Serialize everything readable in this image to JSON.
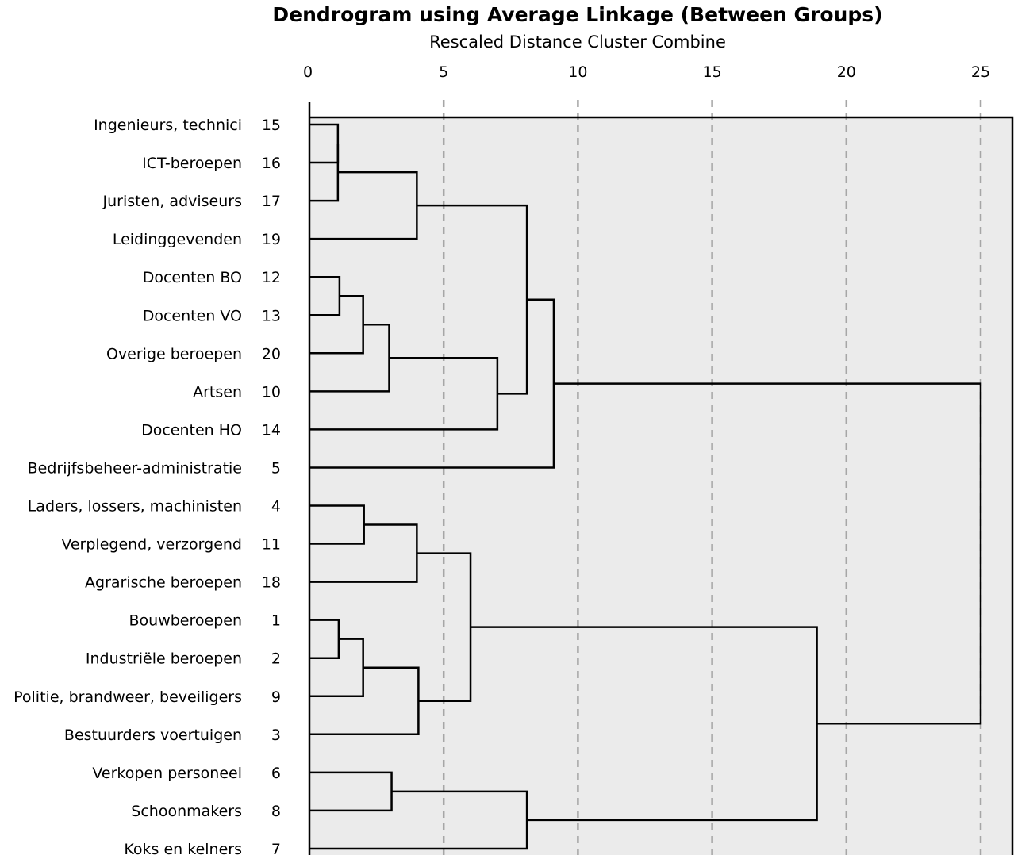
{
  "chart_data": {
    "type": "dendrogram",
    "title": "Dendrogram using Average Linkage (Between Groups)",
    "subtitle": "Rescaled Distance Cluster Combine",
    "x_ticks": [
      "0",
      "5",
      "10",
      "15",
      "20",
      "25"
    ],
    "xlim": [
      0,
      25
    ],
    "grid": "dashed vertical at each tick",
    "leaves": [
      {
        "label": "Ingenieurs, technici",
        "id": "15"
      },
      {
        "label": "ICT-beroepen",
        "id": "16"
      },
      {
        "label": "Juristen, adviseurs",
        "id": "17"
      },
      {
        "label": "Leidinggevenden",
        "id": "19"
      },
      {
        "label": "Docenten BO",
        "id": "12"
      },
      {
        "label": "Docenten VO",
        "id": "13"
      },
      {
        "label": "Overige beroepen",
        "id": "20"
      },
      {
        "label": "Artsen",
        "id": "10"
      },
      {
        "label": "Docenten HO",
        "id": "14"
      },
      {
        "label": "Bedrijfsbeheer-administratie",
        "id": "5"
      },
      {
        "label": "Laders, lossers, machinisten",
        "id": "4"
      },
      {
        "label": "Verplegend, verzorgend",
        "id": "11"
      },
      {
        "label": "Agrarische beroepen",
        "id": "18"
      },
      {
        "label": "Bouwberoepen",
        "id": "1"
      },
      {
        "label": "Industriële beroepen",
        "id": "2"
      },
      {
        "label": "Politie, brandweer, beveiligers",
        "id": "9"
      },
      {
        "label": "Bestuurders voertuigen",
        "id": "3"
      },
      {
        "label": "Verkopen personeel",
        "id": "6"
      },
      {
        "label": "Schoonmakers",
        "id": "8"
      },
      {
        "label": "Koks en kelners",
        "id": "7"
      }
    ],
    "merges": [
      {
        "a": "L0",
        "b": "L1",
        "height": 1.06
      },
      {
        "a": "M0",
        "b": "L2",
        "height": 1.06
      },
      {
        "a": "M1",
        "b": "L3",
        "height": 4.0
      },
      {
        "a": "L4",
        "b": "L5",
        "height": 1.12
      },
      {
        "a": "M3",
        "b": "L6",
        "height": 2.0
      },
      {
        "a": "M4",
        "b": "L7",
        "height": 2.97
      },
      {
        "a": "M5",
        "b": "L8",
        "height": 7.0
      },
      {
        "a": "M2",
        "b": "M6",
        "height": 8.1
      },
      {
        "a": "M7",
        "b": "L9",
        "height": 9.1
      },
      {
        "a": "L10",
        "b": "L11",
        "height": 2.03
      },
      {
        "a": "M9",
        "b": "L12",
        "height": 4.0
      },
      {
        "a": "L13",
        "b": "L14",
        "height": 1.09
      },
      {
        "a": "M11",
        "b": "L15",
        "height": 2.0
      },
      {
        "a": "M12",
        "b": "L16",
        "height": 4.06
      },
      {
        "a": "M10",
        "b": "M13",
        "height": 6.0
      },
      {
        "a": "L17",
        "b": "L18",
        "height": 3.06
      },
      {
        "a": "M15",
        "b": "L19",
        "height": 8.1
      },
      {
        "a": "M14",
        "b": "M16",
        "height": 18.9
      },
      {
        "a": "M8",
        "b": "M17",
        "height": 25.0
      }
    ]
  }
}
